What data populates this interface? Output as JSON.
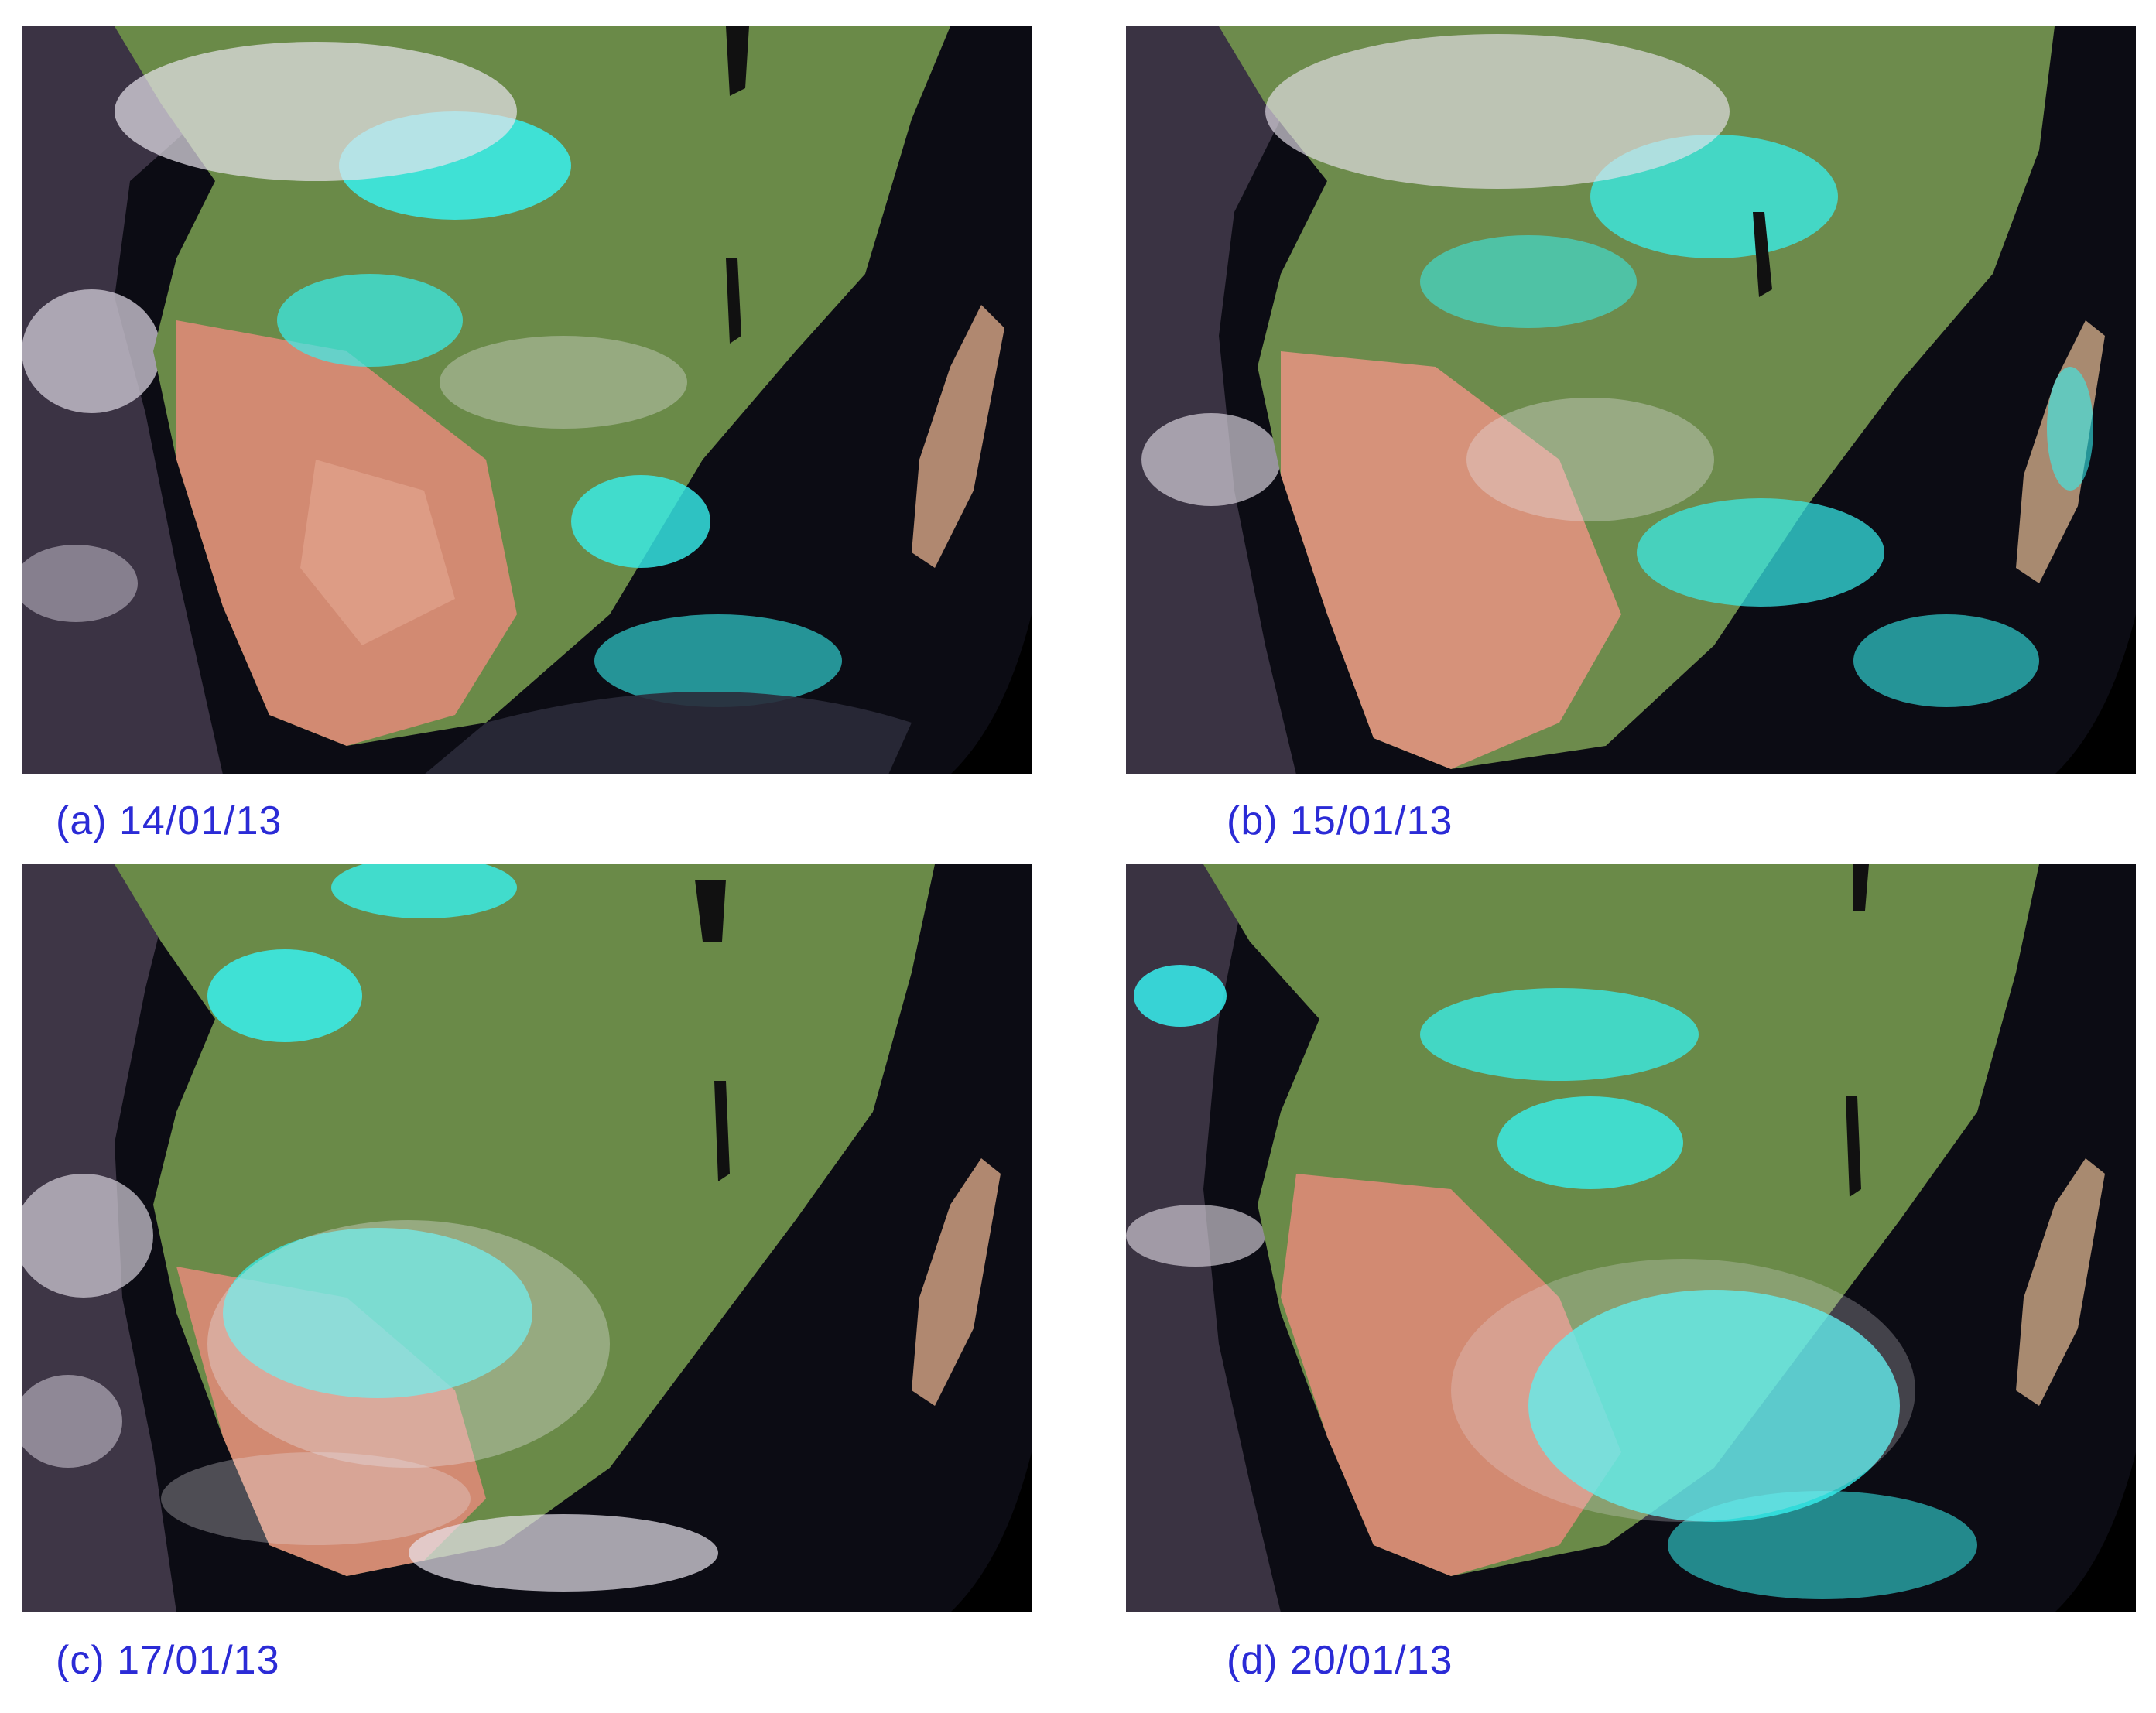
{
  "caption_color": "#2b2bd6",
  "panels": [
    {
      "caption": "(a) 14/01/13"
    },
    {
      "caption": "(b) 15/01/13"
    },
    {
      "caption": "(c) 17/01/13"
    },
    {
      "caption": "(d) 20/01/13"
    }
  ],
  "colors": {
    "ocean": "#0b0b12",
    "land_green": "#6a8a48",
    "land_desert": "#d28a72",
    "cloud_cyan": "#37f0ee",
    "cloud_white": "#e8e4ec",
    "space": "#000000"
  }
}
